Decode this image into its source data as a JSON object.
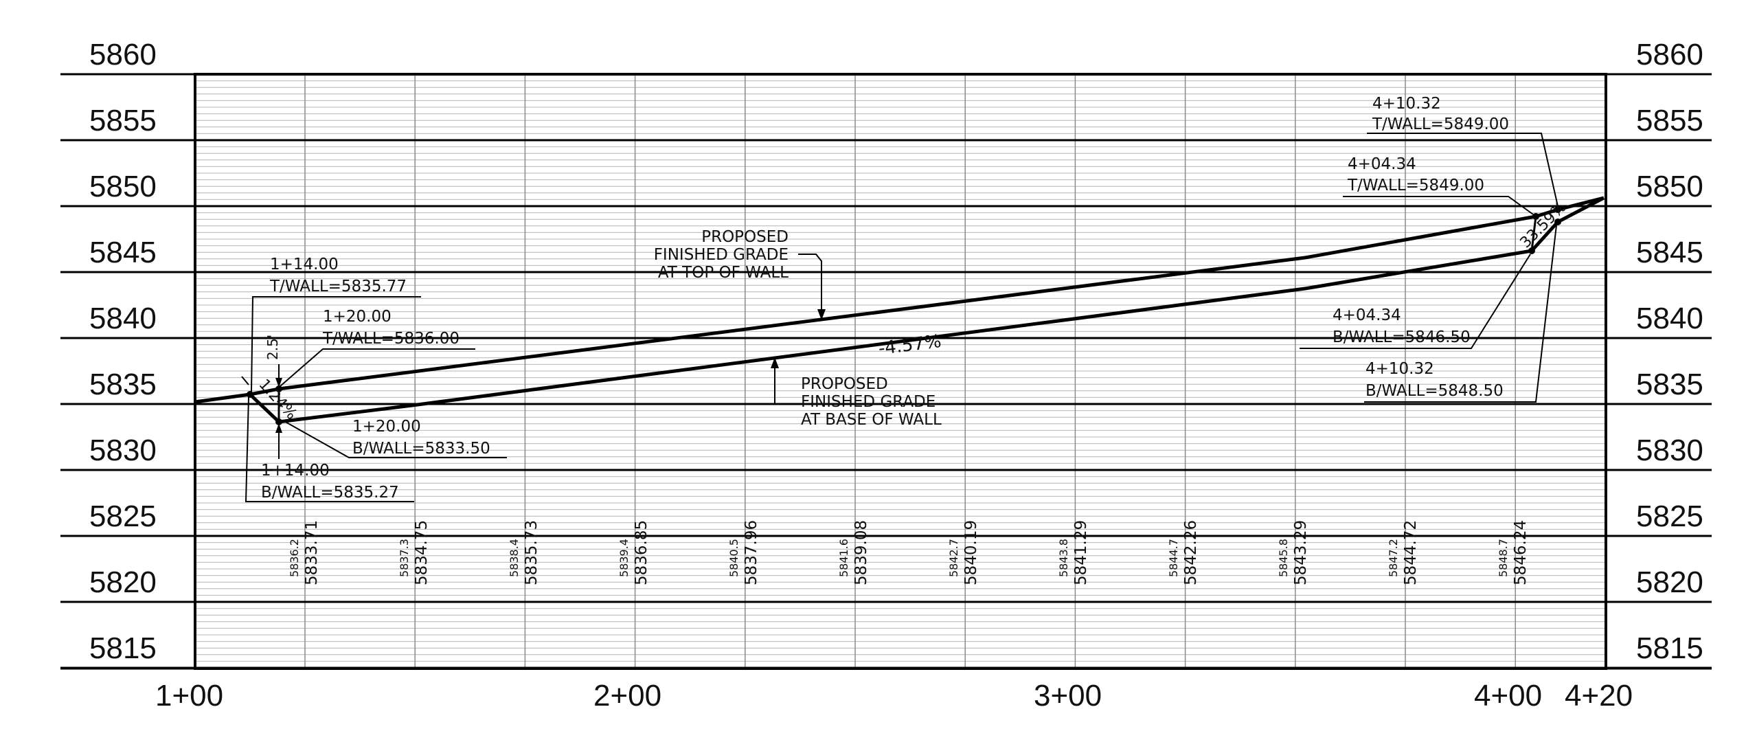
{
  "profile": {
    "elevations": [
      "5860",
      "5855",
      "5850",
      "5845",
      "5840",
      "5835",
      "5830",
      "5825",
      "5820",
      "5815"
    ],
    "stations": [
      "1+00",
      "2+00",
      "3+00",
      "4+00",
      "4+20"
    ],
    "grade_percent_left": "1.24%",
    "grade_percent_mid": "-4.57%",
    "grade_percent_right": "33.59%",
    "wall_height_label": "2.5'"
  },
  "bottom_values": [
    {
      "upper": "5836.2",
      "lower": "5833.71"
    },
    {
      "upper": "5837.3",
      "lower": "5834.75"
    },
    {
      "upper": "5838.4",
      "lower": "5835.73"
    },
    {
      "upper": "5839.4",
      "lower": "5836.85"
    },
    {
      "upper": "5840.5",
      "lower": "5837.96"
    },
    {
      "upper": "5841.6",
      "lower": "5839.08"
    },
    {
      "upper": "5842.7",
      "lower": "5840.19"
    },
    {
      "upper": "5843.8",
      "lower": "5841.29"
    },
    {
      "upper": "5844.7",
      "lower": "5842.26"
    },
    {
      "upper": "5845.8",
      "lower": "5843.29"
    },
    {
      "upper": "5847.2",
      "lower": "5844.72"
    },
    {
      "upper": "5848.7",
      "lower": "5846.24"
    }
  ],
  "notes": {
    "top_wall_114": {
      "line1": "1+14.00",
      "line2": "T/WALL=5835.77"
    },
    "top_wall_120": {
      "line1": "1+20.00",
      "line2": "T/WALL=5836.00"
    },
    "base_wall_120": {
      "line1": "1+20.00",
      "line2": "B/WALL=5833.50"
    },
    "base_wall_114": {
      "line1": "1+14.00",
      "line2": "B/WALL=5835.27"
    },
    "proposed_top": {
      "line1": "PROPOSED",
      "line2": "FINISHED GRADE",
      "line3": "AT TOP OF WALL"
    },
    "proposed_base": {
      "line1": "PROPOSED",
      "line2": "FINISHED GRADE",
      "line3": "AT BASE OF WALL"
    },
    "top_wall_41032": {
      "line1": "4+10.32",
      "line2": "T/WALL=5849.00"
    },
    "top_wall_40434": {
      "line1": "4+04.34",
      "line2": "T/WALL=5849.00"
    },
    "base_wall_40434": {
      "line1": "4+04.34",
      "line2": "B/WALL=5846.50"
    },
    "base_wall_41032": {
      "line1": "4+10.32",
      "line2": "B/WALL=5848.50"
    }
  }
}
